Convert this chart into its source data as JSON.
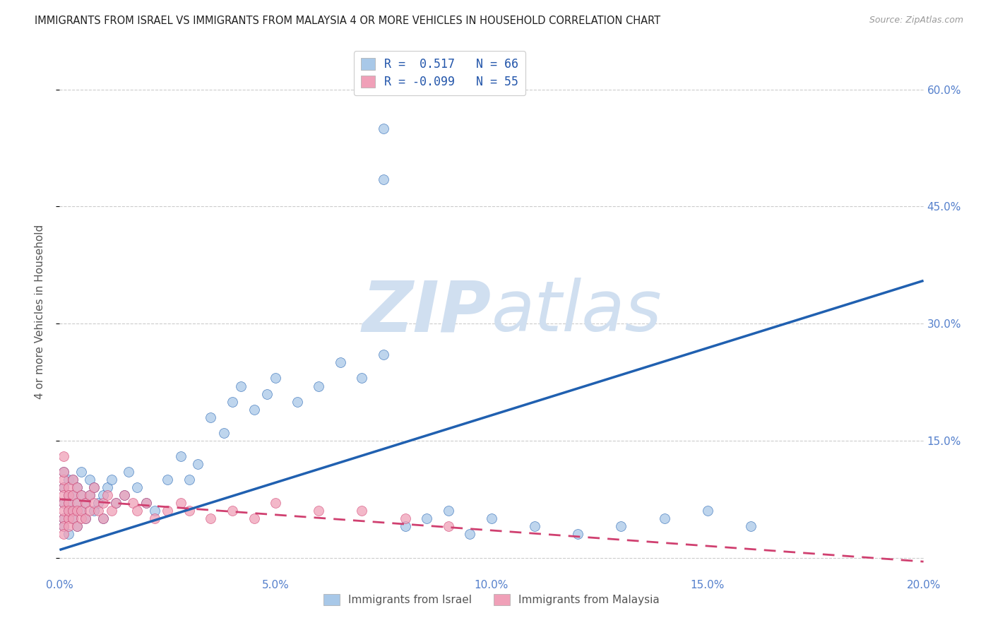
{
  "title": "IMMIGRANTS FROM ISRAEL VS IMMIGRANTS FROM MALAYSIA 4 OR MORE VEHICLES IN HOUSEHOLD CORRELATION CHART",
  "source": "Source: ZipAtlas.com",
  "ylabel": "4 or more Vehicles in Household",
  "R_israel": 0.517,
  "N_israel": 66,
  "R_malaysia": -0.099,
  "N_malaysia": 55,
  "color_israel": "#a8c8e8",
  "color_malaysia": "#f0a0b8",
  "line_color_israel": "#2060b0",
  "line_color_malaysia": "#d04070",
  "watermark_zip": "ZIP",
  "watermark_atlas": "atlas",
  "watermark_color": "#d0dff0",
  "background_color": "#ffffff",
  "xlim": [
    0.0,
    0.2
  ],
  "ylim": [
    -0.02,
    0.65
  ],
  "ytick_vals": [
    0.0,
    0.15,
    0.3,
    0.45,
    0.6
  ],
  "ytick_labels": [
    "",
    "15.0%",
    "30.0%",
    "45.0%",
    "60.0%"
  ],
  "xtick_vals": [
    0.0,
    0.05,
    0.1,
    0.15,
    0.2
  ],
  "xtick_labels": [
    "0.0%",
    "5.0%",
    "10.0%",
    "15.0%",
    "20.0%"
  ],
  "israel_line_x": [
    0.0,
    0.2
  ],
  "israel_line_y": [
    0.01,
    0.355
  ],
  "malaysia_line_x": [
    0.0,
    0.2
  ],
  "malaysia_line_y": [
    0.075,
    -0.005
  ],
  "israel_points_x": [
    0.001,
    0.001,
    0.001,
    0.001,
    0.001,
    0.002,
    0.002,
    0.002,
    0.002,
    0.002,
    0.003,
    0.003,
    0.003,
    0.003,
    0.004,
    0.004,
    0.004,
    0.005,
    0.005,
    0.005,
    0.006,
    0.006,
    0.007,
    0.007,
    0.008,
    0.008,
    0.009,
    0.01,
    0.01,
    0.011,
    0.012,
    0.013,
    0.015,
    0.016,
    0.018,
    0.02,
    0.022,
    0.025,
    0.028,
    0.03,
    0.032,
    0.035,
    0.038,
    0.04,
    0.042,
    0.045,
    0.048,
    0.05,
    0.055,
    0.06,
    0.065,
    0.07,
    0.075,
    0.08,
    0.085,
    0.09,
    0.095,
    0.1,
    0.11,
    0.12,
    0.13,
    0.14,
    0.15,
    0.16,
    0.075,
    0.075
  ],
  "israel_points_y": [
    0.05,
    0.07,
    0.09,
    0.11,
    0.04,
    0.06,
    0.08,
    0.1,
    0.03,
    0.07,
    0.05,
    0.08,
    0.06,
    0.1,
    0.07,
    0.09,
    0.04,
    0.06,
    0.08,
    0.11,
    0.07,
    0.05,
    0.08,
    0.1,
    0.06,
    0.09,
    0.07,
    0.08,
    0.05,
    0.09,
    0.1,
    0.07,
    0.08,
    0.11,
    0.09,
    0.07,
    0.06,
    0.1,
    0.13,
    0.1,
    0.12,
    0.18,
    0.16,
    0.2,
    0.22,
    0.19,
    0.21,
    0.23,
    0.2,
    0.22,
    0.25,
    0.23,
    0.26,
    0.04,
    0.05,
    0.06,
    0.03,
    0.05,
    0.04,
    0.03,
    0.04,
    0.05,
    0.06,
    0.04,
    0.55,
    0.485
  ],
  "malaysia_points_x": [
    0.001,
    0.001,
    0.001,
    0.001,
    0.001,
    0.001,
    0.001,
    0.001,
    0.001,
    0.001,
    0.002,
    0.002,
    0.002,
    0.002,
    0.002,
    0.002,
    0.003,
    0.003,
    0.003,
    0.003,
    0.004,
    0.004,
    0.004,
    0.004,
    0.005,
    0.005,
    0.005,
    0.006,
    0.006,
    0.007,
    0.007,
    0.008,
    0.008,
    0.009,
    0.01,
    0.01,
    0.011,
    0.012,
    0.013,
    0.015,
    0.017,
    0.018,
    0.02,
    0.022,
    0.025,
    0.028,
    0.03,
    0.035,
    0.04,
    0.045,
    0.05,
    0.06,
    0.07,
    0.08,
    0.09
  ],
  "malaysia_points_y": [
    0.05,
    0.07,
    0.09,
    0.06,
    0.08,
    0.1,
    0.04,
    0.11,
    0.13,
    0.03,
    0.05,
    0.07,
    0.09,
    0.06,
    0.08,
    0.04,
    0.06,
    0.08,
    0.1,
    0.05,
    0.07,
    0.09,
    0.06,
    0.04,
    0.05,
    0.08,
    0.06,
    0.07,
    0.05,
    0.06,
    0.08,
    0.07,
    0.09,
    0.06,
    0.05,
    0.07,
    0.08,
    0.06,
    0.07,
    0.08,
    0.07,
    0.06,
    0.07,
    0.05,
    0.06,
    0.07,
    0.06,
    0.05,
    0.06,
    0.05,
    0.07,
    0.06,
    0.06,
    0.05,
    0.04
  ]
}
